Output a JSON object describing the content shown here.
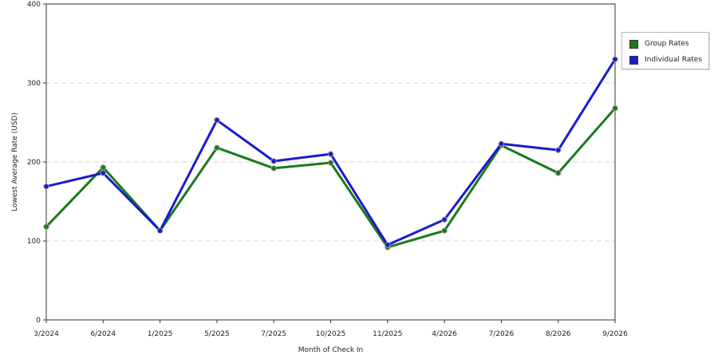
{
  "chart_data": {
    "type": "line",
    "title": "",
    "xlabel": "Month of Check In",
    "ylabel": "Lowest Average Rate (USD)",
    "ylim": [
      0,
      400
    ],
    "yticks": [
      0,
      100,
      200,
      300,
      400
    ],
    "grid": true,
    "legend_position": "right",
    "categories": [
      "3/2024",
      "6/2024",
      "1/2025",
      "5/2025",
      "7/2025",
      "10/2025",
      "11/2025",
      "4/2026",
      "7/2026",
      "8/2026",
      "9/2026"
    ],
    "series": [
      {
        "name": "Group Rates",
        "color": "#1a7a1a",
        "values": [
          118,
          193,
          113,
          218,
          192,
          199,
          92,
          113,
          221,
          186,
          268
        ]
      },
      {
        "name": "Individual Rates",
        "color": "#1a1ad0",
        "values": [
          169,
          186,
          113,
          253,
          201,
          210,
          95,
          127,
          223,
          215,
          330
        ]
      }
    ]
  }
}
